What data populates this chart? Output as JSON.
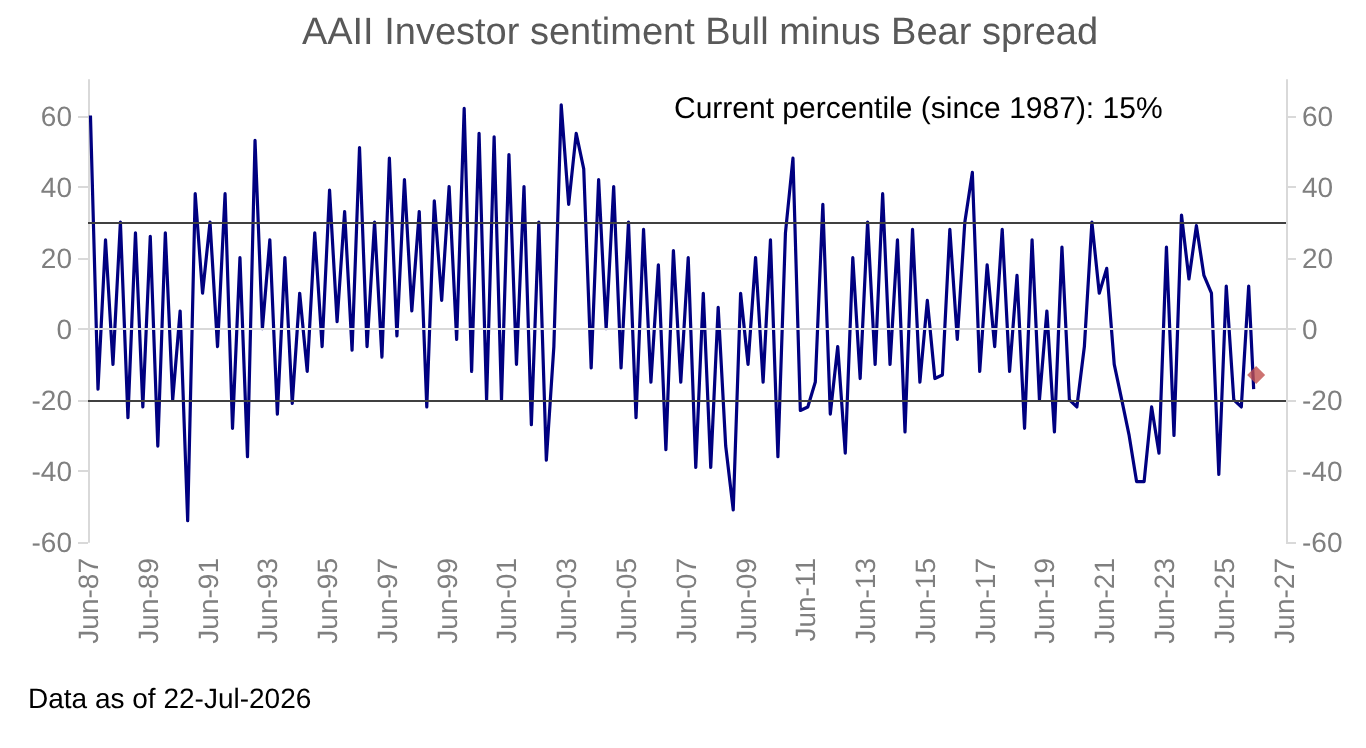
{
  "chart_data": {
    "type": "line",
    "title": "AAII Investor sentiment Bull minus Bear spread",
    "annotations": [
      "Current percentile (since 1987): 15%",
      "Data as of 22-Jul-2026"
    ],
    "series": [
      {
        "color": "#000080",
        "x": [
          "1987-07",
          "1987-10",
          "1988-01",
          "1988-04",
          "1988-07",
          "1988-10",
          "1989-01",
          "1989-04",
          "1989-07",
          "1989-10",
          "1990-01",
          "1990-04",
          "1990-07",
          "1990-10",
          "1991-01",
          "1991-04",
          "1991-07",
          "1991-10",
          "1992-01",
          "1992-04",
          "1992-07",
          "1992-10",
          "1993-01",
          "1993-04",
          "1993-07",
          "1993-10",
          "1994-01",
          "1994-04",
          "1994-07",
          "1994-10",
          "1995-01",
          "1995-04",
          "1995-07",
          "1995-10",
          "1996-01",
          "1996-04",
          "1996-07",
          "1996-10",
          "1997-01",
          "1997-04",
          "1997-07",
          "1997-10",
          "1998-01",
          "1998-04",
          "1998-07",
          "1998-10",
          "1999-01",
          "1999-04",
          "1999-07",
          "1999-10",
          "2000-01",
          "2000-04",
          "2000-07",
          "2000-10",
          "2001-01",
          "2001-04",
          "2001-07",
          "2001-10",
          "2002-01",
          "2002-04",
          "2002-07",
          "2002-10",
          "2003-01",
          "2003-04",
          "2003-07",
          "2003-10",
          "2004-01",
          "2004-04",
          "2004-07",
          "2004-10",
          "2005-01",
          "2005-04",
          "2005-07",
          "2005-10",
          "2006-01",
          "2006-04",
          "2006-07",
          "2006-10",
          "2007-01",
          "2007-04",
          "2007-07",
          "2007-10",
          "2008-01",
          "2008-04",
          "2008-07",
          "2008-10",
          "2009-01",
          "2009-04",
          "2009-07",
          "2009-10",
          "2010-01",
          "2010-04",
          "2010-07",
          "2010-10",
          "2011-01",
          "2011-04",
          "2011-07",
          "2011-10",
          "2012-01",
          "2012-04",
          "2012-07",
          "2012-10",
          "2013-01",
          "2013-04",
          "2013-07",
          "2013-10",
          "2014-01",
          "2014-04",
          "2014-07",
          "2014-10",
          "2015-01",
          "2015-04",
          "2015-07",
          "2015-10",
          "2016-01",
          "2016-04",
          "2016-07",
          "2016-10",
          "2017-01",
          "2017-04",
          "2017-07",
          "2017-10",
          "2018-01",
          "2018-04",
          "2018-07",
          "2018-10",
          "2019-01",
          "2019-04",
          "2019-07",
          "2019-10",
          "2020-01",
          "2020-04",
          "2020-07",
          "2020-10",
          "2021-01",
          "2021-04",
          "2021-07",
          "2021-10",
          "2022-01",
          "2022-04",
          "2022-07",
          "2022-10",
          "2023-01",
          "2023-04",
          "2023-07",
          "2023-10",
          "2024-01",
          "2024-04",
          "2024-07",
          "2024-10",
          "2025-01",
          "2025-04",
          "2025-07",
          "2025-10",
          "2026-01",
          "2026-04",
          "2026-06"
        ],
        "values": [
          60,
          -17,
          25,
          -10,
          30,
          -25,
          27,
          -22,
          26,
          -33,
          27,
          -20,
          5,
          -54,
          38,
          10,
          30,
          -5,
          38,
          -28,
          20,
          -36,
          53,
          0,
          25,
          -24,
          20,
          -21,
          10,
          -12,
          27,
          -5,
          39,
          2,
          33,
          -6,
          51,
          -5,
          30,
          -8,
          48,
          -2,
          42,
          5,
          33,
          -22,
          36,
          8,
          40,
          -3,
          62,
          -12,
          55,
          -20,
          54,
          -20,
          49,
          -10,
          40,
          -27,
          30,
          -37,
          -5,
          63,
          35,
          55,
          45,
          -11,
          42,
          0,
          40,
          -11,
          30,
          -25,
          28,
          -15,
          18,
          -34,
          22,
          -15,
          20,
          -39,
          10,
          -39,
          6,
          -33,
          -51,
          10,
          -10,
          20,
          -15,
          25,
          -36,
          27,
          48,
          -23,
          -22,
          -15,
          35,
          -24,
          -5,
          -35,
          20,
          -14,
          30,
          -10,
          38,
          -10,
          25,
          -29,
          28,
          -15,
          8,
          -14,
          -13,
          28,
          -3,
          30,
          44,
          -12,
          18,
          -5,
          28,
          -12,
          15,
          -28,
          25,
          -20,
          5,
          -29,
          23,
          -20,
          -22,
          -5,
          30,
          10,
          17,
          -10,
          -20,
          -30,
          -43,
          -43,
          -22,
          -35,
          23,
          -30,
          32,
          14,
          29,
          15,
          10,
          -41,
          12,
          -20,
          -22,
          12,
          -17
        ]
      },
      {
        "type": "scatter",
        "marker": "diamond",
        "color": "#c0504d",
        "x": [
          "2026-07"
        ],
        "values": [
          -13
        ]
      }
    ],
    "xlim": [
      "1987-06",
      "2027-07"
    ],
    "xticks": [
      {
        "value": "1987-06",
        "label": "Jun-87"
      },
      {
        "value": "1989-06",
        "label": "Jun-89"
      },
      {
        "value": "1991-06",
        "label": "Jun-91"
      },
      {
        "value": "1993-06",
        "label": "Jun-93"
      },
      {
        "value": "1995-06",
        "label": "Jun-95"
      },
      {
        "value": "1997-06",
        "label": "Jun-97"
      },
      {
        "value": "1999-06",
        "label": "Jun-99"
      },
      {
        "value": "2001-06",
        "label": "Jun-01"
      },
      {
        "value": "2003-06",
        "label": "Jun-03"
      },
      {
        "value": "2005-06",
        "label": "Jun-05"
      },
      {
        "value": "2007-06",
        "label": "Jun-07"
      },
      {
        "value": "2009-06",
        "label": "Jun-09"
      },
      {
        "value": "2011-06",
        "label": "Jun-11"
      },
      {
        "value": "2013-06",
        "label": "Jun-13"
      },
      {
        "value": "2015-06",
        "label": "Jun-15"
      },
      {
        "value": "2017-06",
        "label": "Jun-17"
      },
      {
        "value": "2019-06",
        "label": "Jun-19"
      },
      {
        "value": "2021-06",
        "label": "Jun-21"
      },
      {
        "value": "2023-06",
        "label": "Jun-23"
      },
      {
        "value": "2025-06",
        "label": "Jun-25"
      },
      {
        "value": "2027-06",
        "label": "Jun-27"
      }
    ],
    "ylim": [
      -60,
      70
    ],
    "yticks": [
      -60,
      -40,
      -20,
      0,
      20,
      40,
      60
    ],
    "y2lim": [
      -60,
      70
    ],
    "y2ticks": [
      -60,
      -40,
      -20,
      0,
      20,
      40,
      60
    ],
    "ref_lines": [
      {
        "axis": "y",
        "value": 30,
        "color": "#404040"
      },
      {
        "axis": "y",
        "value": -20,
        "color": "#404040"
      },
      {
        "axis": "y",
        "value": 0,
        "color": "#d9d9d9"
      }
    ],
    "grid": false,
    "line_style": "solid",
    "marker": "none"
  }
}
